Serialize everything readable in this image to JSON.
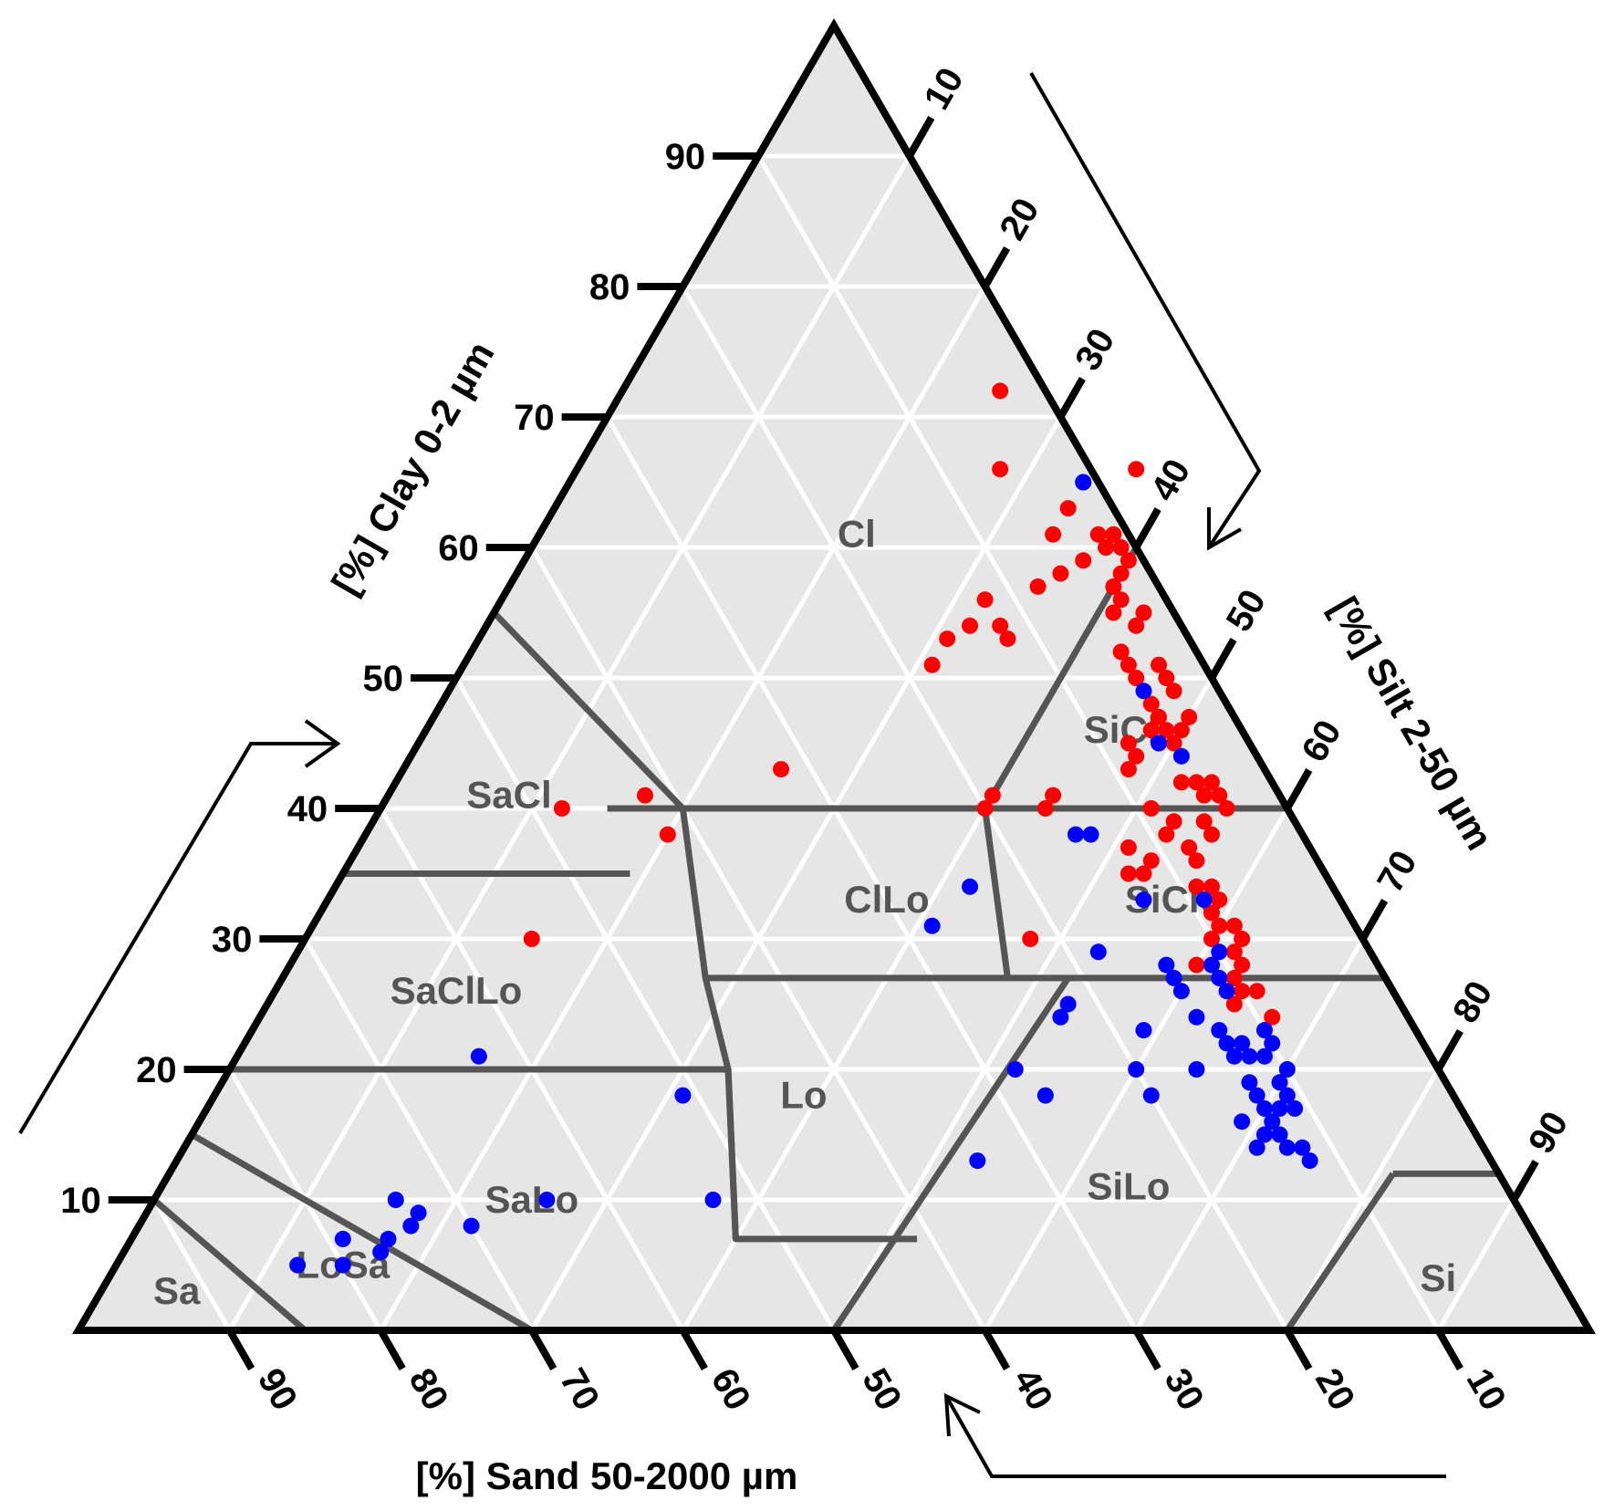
{
  "chart_data": {
    "type": "scatter",
    "subtype": "ternary",
    "axes": {
      "clay": {
        "label": "[%] Clay 0-2 µm",
        "side": "left",
        "ticks": [
          "10",
          "20",
          "30",
          "40",
          "50",
          "60",
          "70",
          "80",
          "90"
        ]
      },
      "silt": {
        "label": "[%] Silt 2-50 µm",
        "side": "right",
        "ticks": [
          "10",
          "20",
          "30",
          "40",
          "50",
          "60",
          "70",
          "80",
          "90"
        ]
      },
      "sand": {
        "label": "[%] Sand 50-2000 µm",
        "side": "bottom",
        "ticks": [
          "90",
          "80",
          "70",
          "60",
          "50",
          "40",
          "30",
          "20",
          "10"
        ]
      }
    },
    "grid": true,
    "grid_interval": 10,
    "background_color": "#e6e6e6",
    "grid_color": "#ffffff",
    "boundary_color": "#555555",
    "regions": [
      {
        "label": "Cl",
        "clay": 61,
        "silt": 21
      },
      {
        "label": "SiCl",
        "clay": 46,
        "silt": 46
      },
      {
        "label": "SaCl",
        "clay": 41,
        "silt": 8
      },
      {
        "label": "ClLo",
        "clay": 33,
        "silt": 37
      },
      {
        "label": "SiClo",
        "clay": 33,
        "silt": 56
      },
      {
        "label": "SaClLo",
        "clay": 26,
        "silt": 12
      },
      {
        "label": "Lo",
        "clay": 18,
        "silt": 39
      },
      {
        "label": "SaLo",
        "clay": 10,
        "silt": 25
      },
      {
        "label": "SiLo",
        "clay": 11,
        "silt": 64
      },
      {
        "label": "LoSa",
        "clay": 5,
        "silt": 15
      },
      {
        "label": "Sa",
        "clay": 3,
        "silt": 5
      },
      {
        "label": "Si",
        "clay": 4,
        "silt": 88
      }
    ],
    "series": [
      {
        "color": "#ff0000",
        "points": [
          {
            "clay": 72,
            "silt": 25
          },
          {
            "clay": 66,
            "silt": 28
          },
          {
            "clay": 65,
            "silt": 34
          },
          {
            "clay": 66,
            "silt": 37
          },
          {
            "clay": 63,
            "silt": 34
          },
          {
            "clay": 61,
            "silt": 34
          },
          {
            "clay": 61,
            "silt": 37
          },
          {
            "clay": 61,
            "silt": 38
          },
          {
            "clay": 60,
            "silt": 38
          },
          {
            "clay": 60,
            "silt": 39
          },
          {
            "clay": 59,
            "silt": 37
          },
          {
            "clay": 58,
            "silt": 36
          },
          {
            "clay": 59,
            "silt": 40
          },
          {
            "clay": 58,
            "silt": 40
          },
          {
            "clay": 57,
            "silt": 40
          },
          {
            "clay": 56,
            "silt": 41
          },
          {
            "clay": 57,
            "silt": 35
          },
          {
            "clay": 56,
            "silt": 32
          },
          {
            "clay": 55,
            "silt": 41
          },
          {
            "clay": 55,
            "silt": 43
          },
          {
            "clay": 54,
            "silt": 43
          },
          {
            "clay": 54,
            "silt": 34
          },
          {
            "clay": 54,
            "silt": 32
          },
          {
            "clay": 53,
            "silt": 35
          },
          {
            "clay": 53,
            "silt": 31
          },
          {
            "clay": 51,
            "silt": 31
          },
          {
            "clay": 52,
            "silt": 43
          },
          {
            "clay": 51,
            "silt": 44
          },
          {
            "clay": 51,
            "silt": 46
          },
          {
            "clay": 50,
            "silt": 45
          },
          {
            "clay": 50,
            "silt": 47
          },
          {
            "clay": 49,
            "silt": 48
          },
          {
            "clay": 48,
            "silt": 47
          },
          {
            "clay": 47,
            "silt": 48
          },
          {
            "clay": 47,
            "silt": 50
          },
          {
            "clay": 46,
            "silt": 48
          },
          {
            "clay": 46,
            "silt": 49
          },
          {
            "clay": 46,
            "silt": 50
          },
          {
            "clay": 45,
            "silt": 47
          },
          {
            "clay": 45,
            "silt": 49
          },
          {
            "clay": 45,
            "silt": 50
          },
          {
            "clay": 44,
            "silt": 48
          },
          {
            "clay": 43,
            "silt": 48
          },
          {
            "clay": 43,
            "silt": 25
          },
          {
            "clay": 42,
            "silt": 52
          },
          {
            "clay": 42,
            "silt": 53
          },
          {
            "clay": 42,
            "silt": 54
          },
          {
            "clay": 41,
            "silt": 54
          },
          {
            "clay": 41,
            "silt": 55
          },
          {
            "clay": 41,
            "silt": 17
          },
          {
            "clay": 41,
            "silt": 40
          },
          {
            "clay": 41,
            "silt": 44
          },
          {
            "clay": 40,
            "silt": 51
          },
          {
            "clay": 40,
            "silt": 56
          },
          {
            "clay": 40,
            "silt": 40
          },
          {
            "clay": 40,
            "silt": 44
          },
          {
            "clay": 40,
            "silt": 12
          },
          {
            "clay": 39,
            "silt": 53
          },
          {
            "clay": 39,
            "silt": 55
          },
          {
            "clay": 38,
            "silt": 56
          },
          {
            "clay": 38,
            "silt": 53
          },
          {
            "clay": 38,
            "silt": 20
          },
          {
            "clay": 37,
            "silt": 55
          },
          {
            "clay": 37,
            "silt": 51
          },
          {
            "clay": 36,
            "silt": 53
          },
          {
            "clay": 36,
            "silt": 56
          },
          {
            "clay": 35,
            "silt": 53
          },
          {
            "clay": 35,
            "silt": 52
          },
          {
            "clay": 34,
            "silt": 57
          },
          {
            "clay": 34,
            "silt": 58
          },
          {
            "clay": 33,
            "silt": 59
          },
          {
            "clay": 32,
            "silt": 59
          },
          {
            "clay": 31,
            "silt": 60
          },
          {
            "clay": 31,
            "silt": 61
          },
          {
            "clay": 30,
            "silt": 60
          },
          {
            "clay": 30,
            "silt": 62
          },
          {
            "clay": 30,
            "silt": 48
          },
          {
            "clay": 30,
            "silt": 15
          },
          {
            "clay": 29,
            "silt": 62
          },
          {
            "clay": 28,
            "silt": 63
          },
          {
            "clay": 28,
            "silt": 60
          },
          {
            "clay": 27,
            "silt": 63
          },
          {
            "clay": 26,
            "silt": 64
          },
          {
            "clay": 26,
            "silt": 65
          },
          {
            "clay": 25,
            "silt": 64
          },
          {
            "clay": 24,
            "silt": 67
          }
        ]
      },
      {
        "color": "#0000ff",
        "points": [
          {
            "clay": 65,
            "silt": 34
          },
          {
            "clay": 49,
            "silt": 46
          },
          {
            "clay": 45,
            "silt": 49
          },
          {
            "clay": 44,
            "silt": 51
          },
          {
            "clay": 38,
            "silt": 47
          },
          {
            "clay": 38,
            "silt": 48
          },
          {
            "clay": 34,
            "silt": 42
          },
          {
            "clay": 31,
            "silt": 41
          },
          {
            "clay": 33,
            "silt": 54
          },
          {
            "clay": 33,
            "silt": 58
          },
          {
            "clay": 29,
            "silt": 53
          },
          {
            "clay": 28,
            "silt": 58
          },
          {
            "clay": 28,
            "silt": 61
          },
          {
            "clay": 29,
            "silt": 61
          },
          {
            "clay": 27,
            "silt": 59
          },
          {
            "clay": 27,
            "silt": 62
          },
          {
            "clay": 26,
            "silt": 60
          },
          {
            "clay": 26,
            "silt": 63
          },
          {
            "clay": 25,
            "silt": 53
          },
          {
            "clay": 24,
            "silt": 53
          },
          {
            "clay": 24,
            "silt": 62
          },
          {
            "clay": 23,
            "silt": 59
          },
          {
            "clay": 23,
            "silt": 64
          },
          {
            "clay": 23,
            "silt": 67
          },
          {
            "clay": 22,
            "silt": 65
          },
          {
            "clay": 22,
            "silt": 66
          },
          {
            "clay": 22,
            "silt": 68
          },
          {
            "clay": 21,
            "silt": 66
          },
          {
            "clay": 21,
            "silt": 67
          },
          {
            "clay": 21,
            "silt": 68
          },
          {
            "clay": 20,
            "silt": 60
          },
          {
            "clay": 20,
            "silt": 64
          },
          {
            "clay": 20,
            "silt": 52
          },
          {
            "clay": 20,
            "silt": 70
          },
          {
            "clay": 19,
            "silt": 68
          },
          {
            "clay": 19,
            "silt": 70
          },
          {
            "clay": 18,
            "silt": 62
          },
          {
            "clay": 18,
            "silt": 55
          },
          {
            "clay": 18,
            "silt": 69
          },
          {
            "clay": 18,
            "silt": 71
          },
          {
            "clay": 17,
            "silt": 70
          },
          {
            "clay": 17,
            "silt": 71
          },
          {
            "clay": 17,
            "silt": 72
          },
          {
            "clay": 16,
            "silt": 69
          },
          {
            "clay": 16,
            "silt": 71
          },
          {
            "clay": 15,
            "silt": 71
          },
          {
            "clay": 15,
            "silt": 72
          },
          {
            "clay": 14,
            "silt": 71
          },
          {
            "clay": 14,
            "silt": 74
          },
          {
            "clay": 14,
            "silt": 73
          },
          {
            "clay": 13,
            "silt": 75
          },
          {
            "clay": 21,
            "silt": 16
          },
          {
            "clay": 18,
            "silt": 31
          },
          {
            "clay": 13,
            "silt": 53
          },
          {
            "clay": 10,
            "silt": 16
          },
          {
            "clay": 10,
            "silt": 26
          },
          {
            "clay": 10,
            "silt": 37
          },
          {
            "clay": 9,
            "silt": 18
          },
          {
            "clay": 8,
            "silt": 18
          },
          {
            "clay": 8,
            "silt": 22
          },
          {
            "clay": 7,
            "silt": 14
          },
          {
            "clay": 7,
            "silt": 17
          },
          {
            "clay": 5,
            "silt": 12
          },
          {
            "clay": 5,
            "silt": 15
          },
          {
            "clay": 6,
            "silt": 17
          }
        ]
      }
    ]
  }
}
